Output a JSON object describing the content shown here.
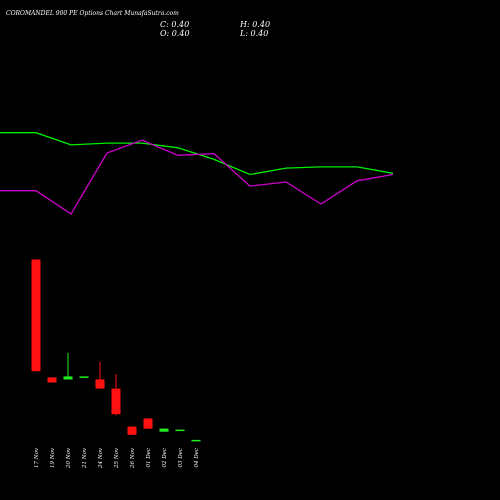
{
  "header": {
    "title": "COROMANDEL 900 PE Options Chart MunafaSutra.com",
    "close": "C: 0.40",
    "open": "O: 0.40",
    "high": "H: 0.40",
    "low": "L: 0.40"
  },
  "colors": {
    "background": "#000000",
    "up": "#22ee22",
    "down": "#ff1111",
    "line_green": "#00ee00",
    "line_magenta": "#cc00cc",
    "text": "#ffffff"
  },
  "chart_data": [
    {
      "type": "line",
      "series": [
        {
          "values": [
            18.5,
            18.5,
            16.4,
            16.7,
            16.7,
            15.9,
            13.9,
            11.3,
            12.4,
            12.6,
            12.6,
            11.5
          ]
        },
        {
          "values": [
            8.5,
            8.5,
            4.5,
            15.0,
            17.2,
            14.6,
            14.9,
            9.3,
            10.0,
            6.2,
            10.2,
            11.3
          ]
        }
      ]
    },
    {
      "type": "candlestick",
      "categories": [
        "17 Nov",
        "19 Nov",
        "20 Nov",
        "21 Nov",
        "24 Nov",
        "25 Nov",
        "26 Nov",
        "01 Dec",
        "02 Dec",
        "03 Dec",
        "04 Dec"
      ],
      "candles": [
        {
          "open": 18.0,
          "high": 18.0,
          "low": 7.1,
          "close": 7.1,
          "direction": "down"
        },
        {
          "open": 6.5,
          "high": 6.5,
          "low": 6.0,
          "close": 6.0,
          "direction": "down"
        },
        {
          "open": 6.3,
          "high": 8.9,
          "low": 6.3,
          "close": 6.6,
          "direction": "up"
        },
        {
          "open": 6.6,
          "high": 6.6,
          "low": 6.5,
          "close": 6.6,
          "direction": "up"
        },
        {
          "open": 6.3,
          "high": 8.0,
          "low": 5.4,
          "close": 5.4,
          "direction": "down"
        },
        {
          "open": 5.4,
          "high": 6.8,
          "low": 2.8,
          "close": 2.9,
          "direction": "down"
        },
        {
          "open": 1.7,
          "high": 1.7,
          "low": 0.9,
          "close": 0.9,
          "direction": "down"
        },
        {
          "open": 2.5,
          "high": 2.5,
          "low": 1.5,
          "close": 1.5,
          "direction": "down"
        },
        {
          "open": 1.5,
          "high": 1.5,
          "low": 1.2,
          "close": 1.2,
          "direction": "up"
        },
        {
          "open": 1.4,
          "high": 1.4,
          "low": 1.4,
          "close": 1.4,
          "direction": "up"
        },
        {
          "open": 0.4,
          "high": 0.4,
          "low": 0.4,
          "close": 0.4,
          "direction": "up"
        }
      ]
    }
  ]
}
